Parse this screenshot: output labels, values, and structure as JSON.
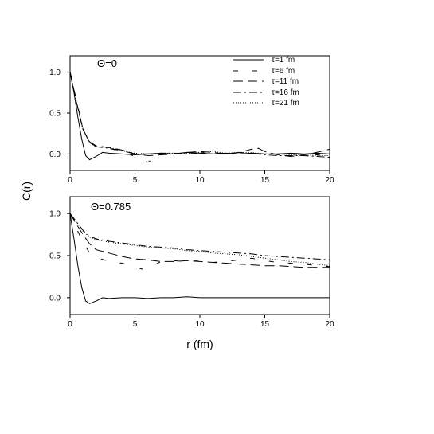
{
  "chart_data": {
    "type": "line",
    "ylabel": "C(r)",
    "xlabel": "r (fm)",
    "xlim": [
      0,
      20
    ],
    "xticks": [
      0,
      5,
      10,
      15,
      20
    ],
    "legend": {
      "placement": "top-right of upper panel",
      "entries": [
        {
          "label": "τ=1 fm",
          "style": "solid"
        },
        {
          "label": "τ=6 fm",
          "style": "dash"
        },
        {
          "label": "τ=11 fm",
          "style": "longdash"
        },
        {
          "label": "τ=16 fm",
          "style": "dashdot"
        },
        {
          "label": "τ=21 fm",
          "style": "dotted"
        }
      ]
    },
    "panels": [
      {
        "label": "Θ=0",
        "ylim": [
          -0.2,
          1.2
        ],
        "yticks": [
          "1.0",
          "0.5",
          "0.0"
        ],
        "ytick_values": [
          1.0,
          0.5,
          0.0
        ],
        "series": [
          {
            "style": "solid",
            "points": [
              [
                0,
                1.0
              ],
              [
                0.3,
                0.75
              ],
              [
                0.6,
                0.45
              ],
              [
                0.9,
                0.18
              ],
              [
                1.2,
                -0.02
              ],
              [
                1.5,
                -0.07
              ],
              [
                2.0,
                -0.03
              ],
              [
                2.5,
                0.02
              ],
              [
                3,
                0.01
              ],
              [
                4,
                0.0
              ],
              [
                5,
                -0.01
              ],
              [
                6,
                0.0
              ],
              [
                7,
                0.01
              ],
              [
                8,
                0.0
              ],
              [
                9,
                0.02
              ],
              [
                10,
                0.01
              ],
              [
                11,
                0.0
              ],
              [
                12,
                0.01
              ],
              [
                13,
                0.0
              ],
              [
                14,
                0.01
              ],
              [
                15,
                0.0
              ],
              [
                16,
                0.0
              ],
              [
                17,
                0.01
              ],
              [
                18,
                0.0
              ],
              [
                19,
                0.01
              ],
              [
                20,
                0.0
              ]
            ]
          },
          {
            "style": "dash",
            "points": [
              [
                0,
                1.0
              ],
              [
                0.5,
                0.65
              ],
              [
                1,
                0.3
              ],
              [
                1.5,
                0.13
              ],
              [
                2,
                0.1
              ],
              [
                3,
                0.07
              ],
              [
                4,
                0.03
              ],
              [
                5,
                -0.03
              ],
              [
                5.5,
                -0.08
              ],
              [
                6,
                -0.1
              ],
              [
                6.3,
                -0.07
              ],
              [
                7,
                0.0
              ],
              [
                8,
                0.0
              ],
              [
                9,
                0.02
              ],
              [
                10,
                0.02
              ],
              [
                11,
                0.0
              ],
              [
                12,
                0.01
              ],
              [
                13,
                0.02
              ],
              [
                14,
                0.01
              ],
              [
                15,
                0.0
              ],
              [
                16,
                0.0
              ],
              [
                17,
                0.01
              ],
              [
                18,
                0.0
              ],
              [
                19,
                -0.01
              ],
              [
                20,
                0.0
              ]
            ]
          },
          {
            "style": "longdash",
            "points": [
              [
                0,
                1.0
              ],
              [
                0.5,
                0.62
              ],
              [
                1,
                0.3
              ],
              [
                1.5,
                0.15
              ],
              [
                2,
                0.1
              ],
              [
                3,
                0.08
              ],
              [
                4,
                0.05
              ],
              [
                5,
                0.0
              ],
              [
                6,
                -0.02
              ],
              [
                7,
                -0.01
              ],
              [
                8,
                0.0
              ],
              [
                9,
                0.02
              ],
              [
                10,
                0.03
              ],
              [
                11,
                0.02
              ],
              [
                12,
                0.0
              ],
              [
                13,
                0.02
              ],
              [
                14,
                0.06
              ],
              [
                14.5,
                0.07
              ],
              [
                15,
                0.03
              ],
              [
                16,
                -0.01
              ],
              [
                17,
                -0.03
              ],
              [
                18,
                -0.01
              ],
              [
                19,
                0.02
              ],
              [
                20,
                0.06
              ]
            ]
          },
          {
            "style": "dashdot",
            "points": [
              [
                0,
                1.0
              ],
              [
                0.5,
                0.63
              ],
              [
                1,
                0.3
              ],
              [
                1.5,
                0.14
              ],
              [
                2,
                0.09
              ],
              [
                3,
                0.07
              ],
              [
                4,
                0.04
              ],
              [
                5,
                0.0
              ],
              [
                6,
                0.0
              ],
              [
                7,
                0.01
              ],
              [
                8,
                0.01
              ],
              [
                9,
                0.0
              ],
              [
                10,
                0.01
              ],
              [
                11,
                0.0
              ],
              [
                12,
                0.0
              ],
              [
                13,
                0.0
              ],
              [
                14,
                0.01
              ],
              [
                15,
                -0.01
              ],
              [
                16,
                -0.02
              ],
              [
                17,
                -0.02
              ],
              [
                18,
                -0.02
              ],
              [
                19,
                -0.03
              ],
              [
                20,
                -0.04
              ]
            ]
          },
          {
            "style": "dotted",
            "points": [
              [
                0,
                1.0
              ],
              [
                0.5,
                0.63
              ],
              [
                1,
                0.3
              ],
              [
                1.5,
                0.14
              ],
              [
                2,
                0.09
              ],
              [
                3,
                0.08
              ],
              [
                4,
                0.04
              ],
              [
                5,
                0.01
              ],
              [
                6,
                0.0
              ],
              [
                7,
                0.01
              ],
              [
                8,
                0.01
              ],
              [
                9,
                0.01
              ],
              [
                10,
                0.02
              ],
              [
                11,
                0.03
              ],
              [
                12,
                0.01
              ],
              [
                13,
                0.02
              ],
              [
                14,
                0.02
              ],
              [
                15,
                0.0
              ],
              [
                16,
                0.0
              ],
              [
                17,
                -0.01
              ],
              [
                18,
                -0.01
              ],
              [
                19,
                -0.02
              ],
              [
                20,
                -0.02
              ]
            ]
          }
        ]
      },
      {
        "label": "Θ=0.785",
        "ylim": [
          -0.2,
          1.2
        ],
        "yticks": [
          "1.0",
          "0.5",
          "0.0"
        ],
        "ytick_values": [
          1.0,
          0.5,
          0.0
        ],
        "series": [
          {
            "style": "solid",
            "points": [
              [
                0,
                1.0
              ],
              [
                0.3,
                0.7
              ],
              [
                0.6,
                0.38
              ],
              [
                0.9,
                0.12
              ],
              [
                1.2,
                -0.04
              ],
              [
                1.5,
                -0.07
              ],
              [
                2.0,
                -0.04
              ],
              [
                2.5,
                0.0
              ],
              [
                3,
                -0.01
              ],
              [
                4,
                0.0
              ],
              [
                5,
                0.0
              ],
              [
                6,
                -0.01
              ],
              [
                7,
                0.0
              ],
              [
                8,
                0.0
              ],
              [
                9,
                0.01
              ],
              [
                10,
                0.0
              ],
              [
                11,
                0.0
              ],
              [
                12,
                0.0
              ],
              [
                13,
                0.0
              ],
              [
                14,
                0.0
              ],
              [
                15,
                0.0
              ],
              [
                16,
                0.0
              ],
              [
                17,
                0.0
              ],
              [
                18,
                0.0
              ],
              [
                19,
                0.0
              ],
              [
                20,
                0.0
              ]
            ]
          },
          {
            "style": "dash",
            "points": [
              [
                0,
                1.0
              ],
              [
                0.5,
                0.82
              ],
              [
                1,
                0.66
              ],
              [
                1.5,
                0.53
              ],
              [
                2,
                0.48
              ],
              [
                3,
                0.43
              ],
              [
                4,
                0.41
              ],
              [
                5,
                0.37
              ],
              [
                5.5,
                0.34
              ],
              [
                6,
                0.34
              ],
              [
                6.5,
                0.39
              ],
              [
                7,
                0.43
              ],
              [
                8,
                0.44
              ],
              [
                9,
                0.43
              ],
              [
                10,
                0.44
              ],
              [
                11,
                0.42
              ],
              [
                12,
                0.43
              ],
              [
                13,
                0.45
              ],
              [
                14,
                0.47
              ],
              [
                15,
                0.44
              ],
              [
                16,
                0.42
              ],
              [
                17,
                0.41
              ],
              [
                18,
                0.4
              ],
              [
                19,
                0.38
              ],
              [
                20,
                0.37
              ]
            ]
          },
          {
            "style": "longdash",
            "points": [
              [
                0,
                1.0
              ],
              [
                0.5,
                0.87
              ],
              [
                1,
                0.75
              ],
              [
                1.5,
                0.64
              ],
              [
                2,
                0.57
              ],
              [
                3,
                0.53
              ],
              [
                4,
                0.49
              ],
              [
                5,
                0.46
              ],
              [
                6,
                0.45
              ],
              [
                7,
                0.43
              ],
              [
                8,
                0.43
              ],
              [
                9,
                0.44
              ],
              [
                10,
                0.43
              ],
              [
                11,
                0.42
              ],
              [
                12,
                0.41
              ],
              [
                13,
                0.4
              ],
              [
                14,
                0.39
              ],
              [
                15,
                0.38
              ],
              [
                16,
                0.38
              ],
              [
                17,
                0.37
              ],
              [
                18,
                0.36
              ],
              [
                19,
                0.36
              ],
              [
                20,
                0.36
              ]
            ]
          },
          {
            "style": "dashdot",
            "points": [
              [
                0,
                1.0
              ],
              [
                0.5,
                0.9
              ],
              [
                1,
                0.8
              ],
              [
                1.5,
                0.73
              ],
              [
                2,
                0.7
              ],
              [
                3,
                0.67
              ],
              [
                4,
                0.65
              ],
              [
                5,
                0.63
              ],
              [
                6,
                0.61
              ],
              [
                7,
                0.6
              ],
              [
                8,
                0.59
              ],
              [
                9,
                0.57
              ],
              [
                10,
                0.56
              ],
              [
                11,
                0.55
              ],
              [
                12,
                0.54
              ],
              [
                13,
                0.53
              ],
              [
                14,
                0.52
              ],
              [
                15,
                0.5
              ],
              [
                16,
                0.49
              ],
              [
                17,
                0.48
              ],
              [
                18,
                0.47
              ],
              [
                19,
                0.46
              ],
              [
                20,
                0.45
              ]
            ]
          },
          {
            "style": "dotted",
            "points": [
              [
                0,
                1.0
              ],
              [
                0.5,
                0.9
              ],
              [
                1,
                0.79
              ],
              [
                1.5,
                0.72
              ],
              [
                2,
                0.69
              ],
              [
                3,
                0.66
              ],
              [
                4,
                0.64
              ],
              [
                5,
                0.62
              ],
              [
                6,
                0.6
              ],
              [
                7,
                0.59
              ],
              [
                8,
                0.58
              ],
              [
                9,
                0.56
              ],
              [
                10,
                0.55
              ],
              [
                11,
                0.53
              ],
              [
                12,
                0.52
              ],
              [
                13,
                0.51
              ],
              [
                14,
                0.49
              ],
              [
                15,
                0.47
              ],
              [
                16,
                0.45
              ],
              [
                17,
                0.43
              ],
              [
                18,
                0.42
              ],
              [
                19,
                0.4
              ],
              [
                20,
                0.38
              ]
            ]
          }
        ]
      }
    ]
  }
}
